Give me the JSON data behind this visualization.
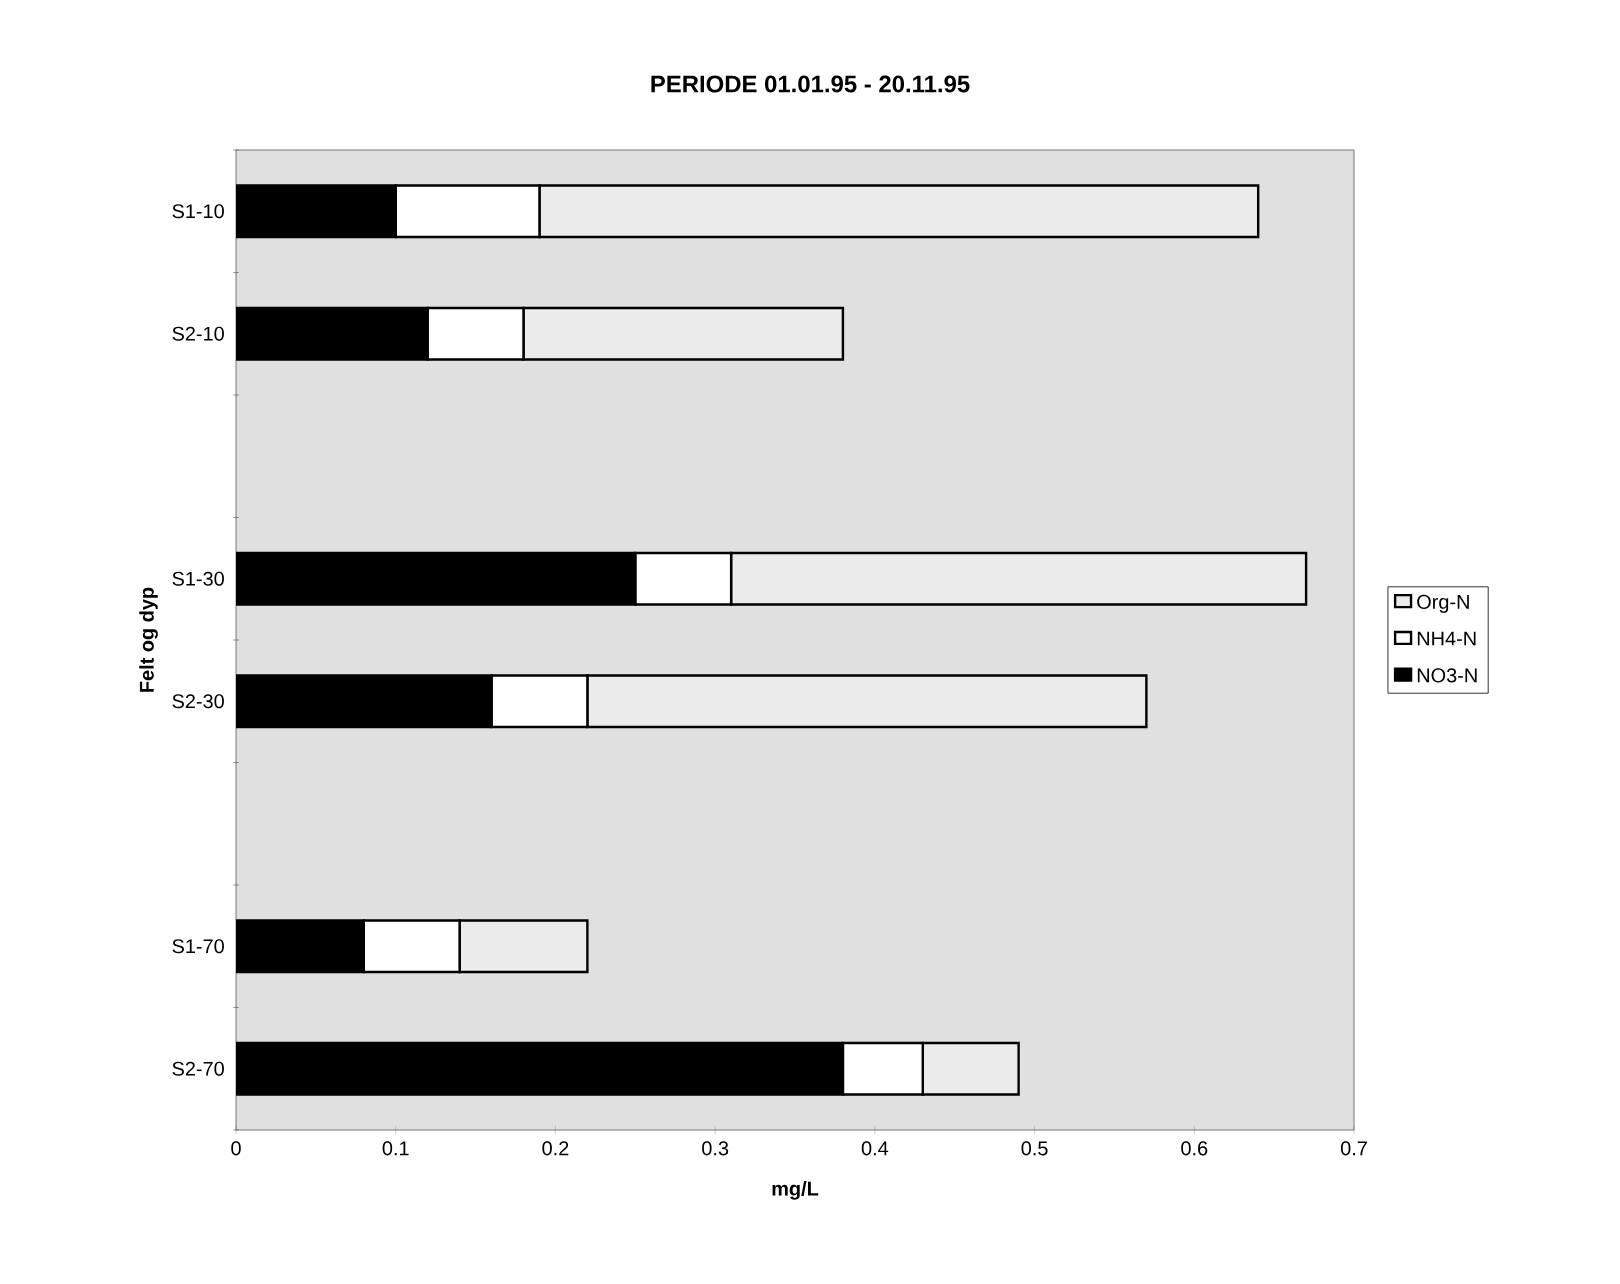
{
  "chart_data": {
    "type": "bar",
    "orientation": "horizontal",
    "stacked": true,
    "title": "PERIODE 01.01.95 - 20.11.95",
    "xlabel": "mg/L",
    "ylabel": "Felt og dyp",
    "categories": [
      "S1-10",
      "S2-10",
      null,
      "S1-30",
      "S2-30",
      null,
      "S1-70",
      "S2-70"
    ],
    "series": [
      {
        "name": "NO3-N",
        "color": "#000000",
        "values": [
          0.1,
          0.12,
          null,
          0.25,
          0.16,
          null,
          0.08,
          0.38
        ]
      },
      {
        "name": "NH4-N",
        "color": "#ffffff",
        "values": [
          0.09,
          0.06,
          null,
          0.06,
          0.06,
          null,
          0.06,
          0.05
        ]
      },
      {
        "name": "Org-N",
        "color": "#ebebeb",
        "values": [
          0.45,
          0.2,
          null,
          0.36,
          0.35,
          null,
          0.08,
          0.06
        ]
      }
    ],
    "xlim": [
      0,
      0.7
    ],
    "xticks": [
      0,
      0.1,
      0.2,
      0.3,
      0.4,
      0.5,
      0.6,
      0.7
    ],
    "legend": "right"
  }
}
